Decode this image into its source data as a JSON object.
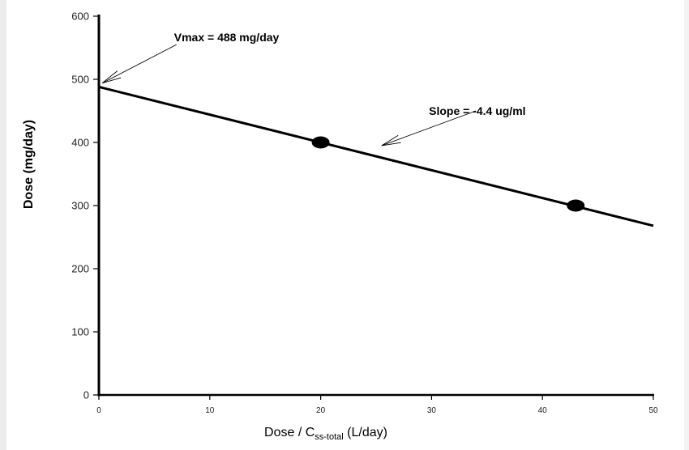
{
  "chart_data": {
    "type": "line",
    "title": "",
    "xlabel": {
      "main": "Dose / C",
      "subscript": "ss-total",
      "suffix": " (L/day)"
    },
    "ylabel": "Dose (mg/day)",
    "xlim": [
      0,
      50
    ],
    "ylim": [
      0,
      600
    ],
    "x_ticks": [
      0,
      10,
      20,
      30,
      40,
      50
    ],
    "y_ticks": [
      0,
      100,
      200,
      300,
      400,
      500,
      600
    ],
    "grid": false,
    "legend": "none",
    "line": {
      "x": [
        0,
        50
      ],
      "y": [
        488,
        268
      ]
    },
    "points": [
      {
        "x": 20,
        "y": 400
      },
      {
        "x": 43,
        "y": 300
      }
    ],
    "annotations": [
      {
        "text": "Vmax = 488 mg/day",
        "target": {
          "x": 0.3,
          "y": 494
        },
        "from": {
          "x": 7,
          "y": 555
        }
      },
      {
        "text": "Slope = -4.4 ug/ml",
        "target": {
          "x": 25.5,
          "y": 395
        },
        "from": {
          "x": 34,
          "y": 450
        }
      }
    ],
    "colors": {
      "line": "#000000",
      "points": "#000000"
    }
  }
}
